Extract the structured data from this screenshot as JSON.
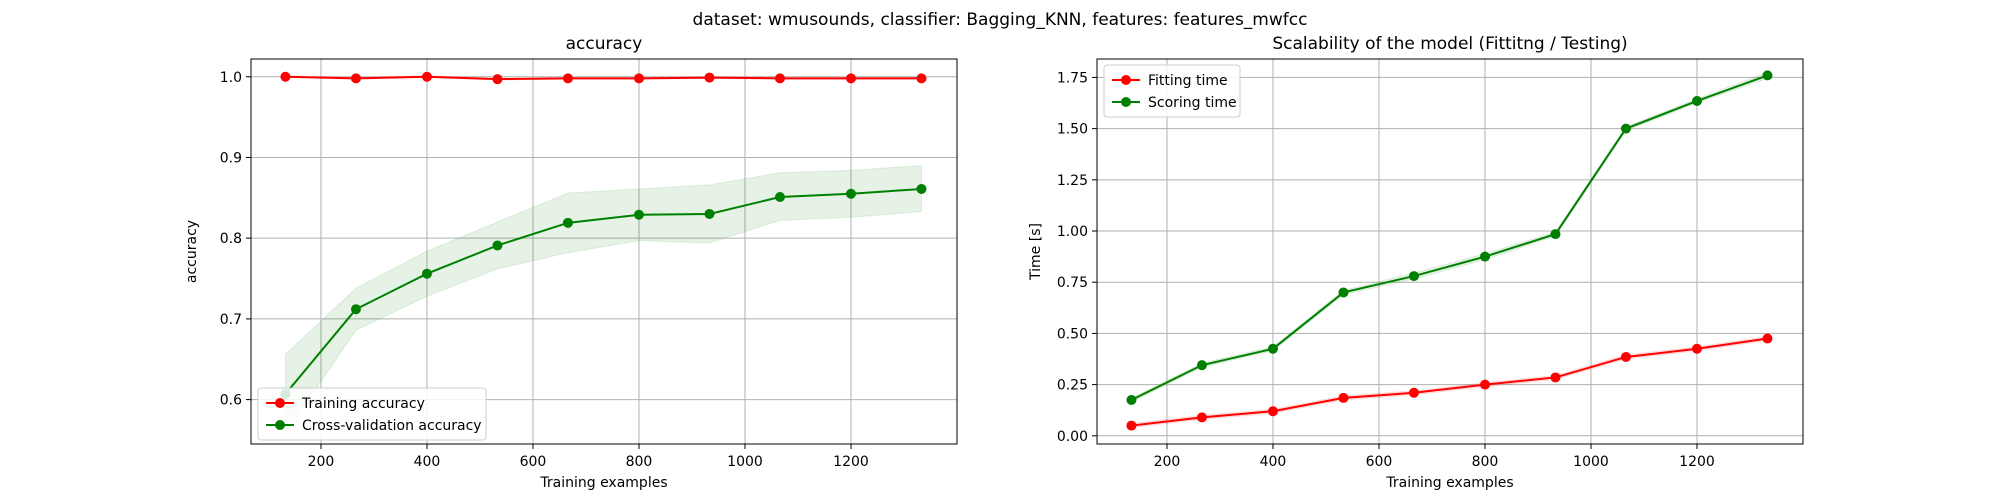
{
  "suptitle": "dataset: wmusounds, classifier: Bagging_KNN, features: features_mwfcc",
  "colors": {
    "train": "#ff0000",
    "cv": "#008000",
    "band": "#008000",
    "grid": "#b0b0b0"
  },
  "chart_data": [
    {
      "type": "line",
      "title": "accuracy",
      "xlabel": "Training examples",
      "ylabel": "accuracy",
      "xlim": [
        68,
        1400
      ],
      "ylim": [
        0.545,
        1.022
      ],
      "xticks": [
        200,
        400,
        600,
        800,
        1000,
        1200
      ],
      "yticks": [
        0.6,
        0.7,
        0.8,
        0.9,
        1.0
      ],
      "ytick_labels": [
        "0.6",
        "0.7",
        "0.8",
        "0.9",
        "1.0"
      ],
      "grid": true,
      "legend": "lower-left",
      "x": [
        133,
        266,
        400,
        533,
        666,
        800,
        933,
        1066,
        1200,
        1333
      ],
      "series": [
        {
          "name": "Training accuracy",
          "color": "red",
          "values": [
            1.0,
            0.998,
            1.0,
            0.997,
            0.998,
            0.998,
            0.999,
            0.998,
            0.998,
            0.998
          ],
          "band_lower": [
            0.999,
            0.997,
            0.999,
            0.996,
            0.997,
            0.997,
            0.998,
            0.997,
            0.997,
            0.997
          ],
          "band_upper": [
            1.001,
            0.999,
            1.001,
            0.998,
            0.999,
            0.999,
            1.0,
            0.999,
            0.999,
            0.999
          ]
        },
        {
          "name": "Cross-validation accuracy",
          "color": "green",
          "values": [
            0.607,
            0.712,
            0.756,
            0.791,
            0.819,
            0.829,
            0.83,
            0.851,
            0.855,
            0.861
          ],
          "band_lower": [
            0.558,
            0.686,
            0.728,
            0.762,
            0.782,
            0.797,
            0.794,
            0.822,
            0.826,
            0.833
          ],
          "band_upper": [
            0.656,
            0.738,
            0.784,
            0.82,
            0.856,
            0.861,
            0.866,
            0.881,
            0.884,
            0.89
          ]
        }
      ]
    },
    {
      "type": "line",
      "title": "Scalability of the model (Fittitng / Testing)",
      "xlabel": "Training examples",
      "ylabel": "Time [s]",
      "xlim": [
        68,
        1400
      ],
      "ylim": [
        -0.04,
        1.84
      ],
      "xticks": [
        200,
        400,
        600,
        800,
        1000,
        1200
      ],
      "yticks": [
        0.0,
        0.25,
        0.5,
        0.75,
        1.0,
        1.25,
        1.5,
        1.75
      ],
      "ytick_labels": [
        "0.00",
        "0.25",
        "0.50",
        "0.75",
        "1.00",
        "1.25",
        "1.50",
        "1.75"
      ],
      "grid": true,
      "legend": "upper-left",
      "x": [
        133,
        266,
        400,
        533,
        666,
        800,
        933,
        1066,
        1200,
        1333
      ],
      "series": [
        {
          "name": "Fitting time",
          "color": "red",
          "values": [
            0.05,
            0.09,
            0.12,
            0.185,
            0.21,
            0.25,
            0.285,
            0.385,
            0.425,
            0.475
          ],
          "band_lower": [
            0.04,
            0.08,
            0.11,
            0.175,
            0.2,
            0.24,
            0.275,
            0.375,
            0.415,
            0.465
          ],
          "band_upper": [
            0.06,
            0.1,
            0.13,
            0.195,
            0.22,
            0.26,
            0.295,
            0.395,
            0.435,
            0.485
          ]
        },
        {
          "name": "Scoring time",
          "color": "green",
          "values": [
            0.175,
            0.345,
            0.425,
            0.7,
            0.78,
            0.875,
            0.985,
            1.5,
            1.635,
            1.76
          ],
          "band_lower": [
            0.165,
            0.335,
            0.415,
            0.69,
            0.765,
            0.86,
            0.975,
            1.49,
            1.625,
            1.745
          ],
          "band_upper": [
            0.185,
            0.355,
            0.435,
            0.71,
            0.795,
            0.89,
            0.995,
            1.51,
            1.645,
            1.775
          ]
        }
      ]
    }
  ]
}
